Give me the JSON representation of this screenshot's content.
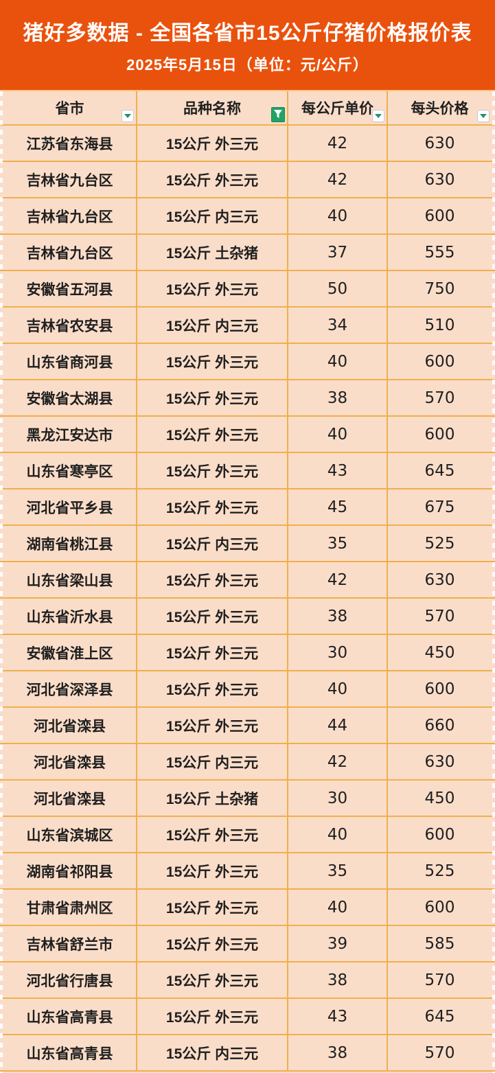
{
  "banner": {
    "title": "猪好多数据 - 全国各省市15公斤仔猪价格报价表",
    "subtitle": "2025年5月15日（单位：元/公斤）"
  },
  "table": {
    "columns": [
      {
        "label": "省市",
        "filter": "dropdown"
      },
      {
        "label": "品种名称",
        "filter": "active"
      },
      {
        "label": "每公斤单价",
        "filter": "dropdown"
      },
      {
        "label": "每头价格",
        "filter": "dropdown"
      }
    ],
    "rows": [
      [
        "江苏省东海县",
        "15公斤 外三元",
        "42",
        "630"
      ],
      [
        "吉林省九台区",
        "15公斤 外三元",
        "42",
        "630"
      ],
      [
        "吉林省九台区",
        "15公斤 内三元",
        "40",
        "600"
      ],
      [
        "吉林省九台区",
        "15公斤 土杂猪",
        "37",
        "555"
      ],
      [
        "安徽省五河县",
        "15公斤 外三元",
        "50",
        "750"
      ],
      [
        "吉林省农安县",
        "15公斤 内三元",
        "34",
        "510"
      ],
      [
        "山东省商河县",
        "15公斤 外三元",
        "40",
        "600"
      ],
      [
        "安徽省太湖县",
        "15公斤 外三元",
        "38",
        "570"
      ],
      [
        "黑龙江安达市",
        "15公斤 外三元",
        "40",
        "600"
      ],
      [
        "山东省寒亭区",
        "15公斤 外三元",
        "43",
        "645"
      ],
      [
        "河北省平乡县",
        "15公斤 外三元",
        "45",
        "675"
      ],
      [
        "湖南省桃江县",
        "15公斤 内三元",
        "35",
        "525"
      ],
      [
        "山东省梁山县",
        "15公斤 外三元",
        "42",
        "630"
      ],
      [
        "山东省沂水县",
        "15公斤 外三元",
        "38",
        "570"
      ],
      [
        "安徽省淮上区",
        "15公斤 外三元",
        "30",
        "450"
      ],
      [
        "河北省深泽县",
        "15公斤 外三元",
        "40",
        "600"
      ],
      [
        "河北省滦县",
        "15公斤 外三元",
        "44",
        "660"
      ],
      [
        "河北省滦县",
        "15公斤 内三元",
        "42",
        "630"
      ],
      [
        "河北省滦县",
        "15公斤 土杂猪",
        "30",
        "450"
      ],
      [
        "山东省滨城区",
        "15公斤 外三元",
        "40",
        "600"
      ],
      [
        "湖南省祁阳县",
        "15公斤 外三元",
        "35",
        "525"
      ],
      [
        "甘肃省肃州区",
        "15公斤 外三元",
        "40",
        "600"
      ],
      [
        "吉林省舒兰市",
        "15公斤 外三元",
        "39",
        "585"
      ],
      [
        "河北省行唐县",
        "15公斤 外三元",
        "38",
        "570"
      ],
      [
        "山东省高青县",
        "15公斤 外三元",
        "43",
        "645"
      ],
      [
        "山东省高青县",
        "15公斤 内三元",
        "38",
        "570"
      ]
    ]
  },
  "colors": {
    "banner_bg": "#E9520D",
    "cell_bg": "#FADDC9",
    "border": "#F0AF4C",
    "text": "#1F1F1F",
    "title_text": "#FFFFFF",
    "filter_active_bg": "#21A366",
    "filter_arrow": "#268E6C"
  }
}
